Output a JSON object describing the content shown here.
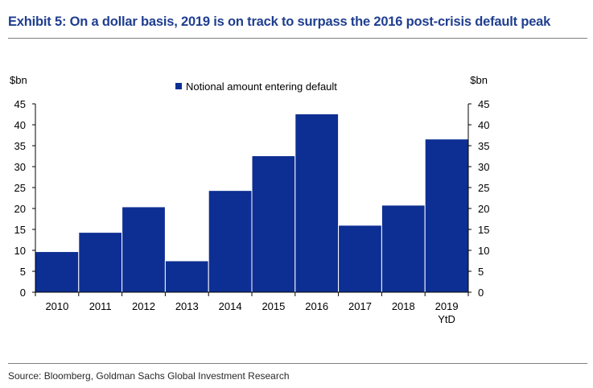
{
  "header": {
    "title": "Exhibit 5: On a dollar basis, 2019 is on track to surpass the 2016 post-crisis default peak"
  },
  "footer": {
    "source": "Source: Bloomberg, Goldman Sachs Global Investment Research"
  },
  "chart_data": {
    "type": "bar",
    "categories": [
      "2010",
      "2011",
      "2012",
      "2013",
      "2014",
      "2015",
      "2016",
      "2017",
      "2018",
      "2019"
    ],
    "category_sublabels": [
      "",
      "",
      "",
      "",
      "",
      "",
      "",
      "",
      "",
      "YtD"
    ],
    "series": [
      {
        "name": "Notional amount entering default",
        "values": [
          9.7,
          14.3,
          20.4,
          7.5,
          24.3,
          32.6,
          42.6,
          16.0,
          20.8,
          36.6
        ],
        "color": "#0d2f93"
      }
    ],
    "y_unit_left": "$bn",
    "y_unit_right": "$bn",
    "ylim": [
      0,
      45
    ],
    "yticks": [
      0,
      5,
      10,
      15,
      20,
      25,
      30,
      35,
      40,
      45
    ],
    "grid": false,
    "legend_position": "top-center",
    "colors": {
      "title": "#1f3e8f",
      "bar": "#0d2f93"
    }
  }
}
